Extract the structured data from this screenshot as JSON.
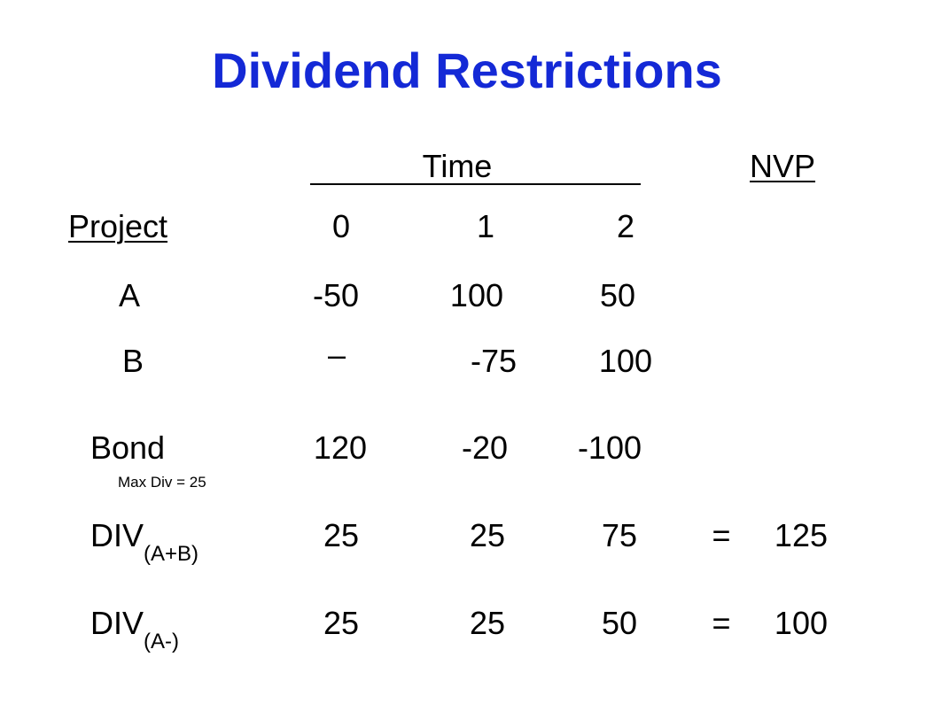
{
  "colors": {
    "title": "#1429d6",
    "text": "#000000",
    "background": "#ffffff"
  },
  "title": "Dividend Restrictions",
  "header": {
    "time": "Time",
    "npv": "NVP"
  },
  "columns": {
    "label": "Project",
    "periods": [
      "0",
      "1",
      "2"
    ]
  },
  "rows": {
    "a": {
      "label": "A",
      "values": [
        "-50",
        "100",
        "50"
      ]
    },
    "b": {
      "label": "B",
      "values": [
        "–",
        "-75",
        "100"
      ]
    },
    "bond": {
      "label": "Bond",
      "values": [
        "120",
        "-20",
        "-100"
      ],
      "note": "Max Div = 25"
    },
    "div_ab": {
      "label": "DIV",
      "subscript": "(A+B)",
      "values": [
        "25",
        "25",
        "75"
      ],
      "equals": "=",
      "npv": "125"
    },
    "div_a": {
      "label": "DIV",
      "subscript": "(A-)",
      "values": [
        "25",
        "25",
        "50"
      ],
      "equals": "=",
      "npv": "100"
    }
  }
}
